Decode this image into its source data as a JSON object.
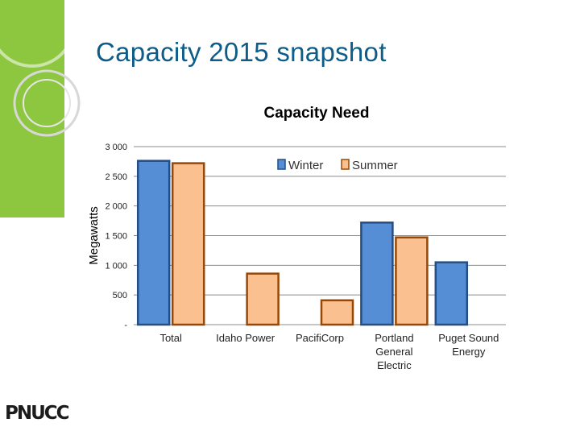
{
  "slide": {
    "title": "Capacity 2015 snapshot",
    "logo_text": "PNUCC"
  },
  "colors": {
    "title": "#0d5c8a",
    "winter_fill": "#558ed5",
    "winter_stroke": "#254e84",
    "summer_fill": "#fac08f",
    "summer_stroke": "#984806",
    "grid": "#8c8c8c",
    "deco_green": "#8dc63f"
  },
  "chart_data": {
    "type": "bar",
    "title": "Capacity Need",
    "xlabel": "",
    "ylabel": "Megawatts",
    "ylim": [
      0,
      3000
    ],
    "ytick_values": [
      0,
      500,
      1000,
      1500,
      2000,
      2500,
      3000
    ],
    "ytick_labels": [
      "-",
      "500",
      "1 000",
      "1 500",
      "2 000",
      "2 500",
      "3 000"
    ],
    "grid": true,
    "legend_position": "top-right",
    "categories": [
      [
        "Total"
      ],
      [
        "Idaho Power"
      ],
      [
        "PacifiCorp"
      ],
      [
        "Portland",
        "General",
        "Electric"
      ],
      [
        "Puget Sound",
        "Energy"
      ]
    ],
    "series": [
      {
        "name": "Winter",
        "values": [
          2760,
          null,
          null,
          1720,
          1050
        ]
      },
      {
        "name": "Summer",
        "values": [
          2720,
          860,
          410,
          1470,
          null
        ]
      }
    ]
  }
}
